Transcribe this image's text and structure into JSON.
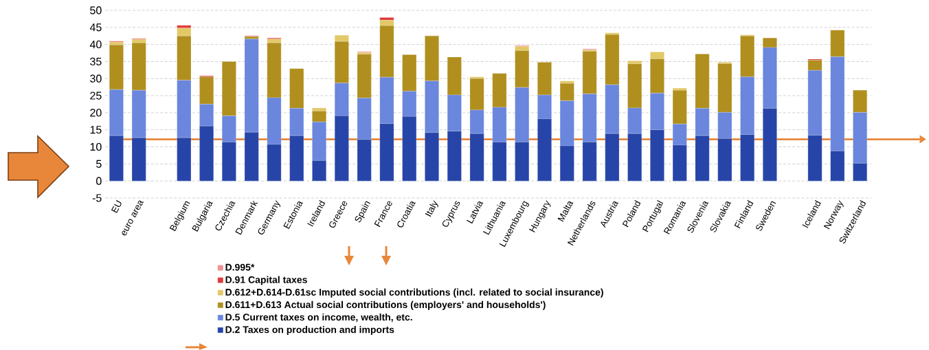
{
  "chart_data": {
    "type": "bar",
    "stacked": true,
    "categories": [
      "EU",
      "euro area",
      null,
      "Belgium",
      "Bulgaria",
      "Czechia",
      "Denmark",
      "Germany",
      "Estonia",
      "Ireland",
      "Greece",
      "Spain",
      "France",
      "Croatia",
      "Italy",
      "Cyprus",
      "Latvia",
      "Lithuania",
      "Luxembourg",
      "Hungary",
      "Malta",
      "Netherlands",
      "Austria",
      "Poland",
      "Portugal",
      "Romania",
      "Slovenia",
      "Slovakia",
      "Finland",
      "Sweden",
      null,
      "Iceland",
      "Norway",
      "Switzerland"
    ],
    "series": [
      {
        "name": "D.2 Taxes on production and imports",
        "color": "#2745a8",
        "values": [
          13.3,
          12.7,
          null,
          12.7,
          16.1,
          11.4,
          14.3,
          10.7,
          13.3,
          6.0,
          19.1,
          12.1,
          16.8,
          18.9,
          14.2,
          14.6,
          13.9,
          11.4,
          11.4,
          18.2,
          10.3,
          11.4,
          13.9,
          13.9,
          15.0,
          10.5,
          13.3,
          12.4,
          13.6,
          21.3,
          null,
          13.4,
          8.8,
          5.2
        ]
      },
      {
        "name": "D.5 Current taxes on income, wealth, etc.",
        "color": "#6a86dd",
        "values": [
          13.5,
          13.9,
          null,
          16.8,
          6.4,
          7.7,
          27.3,
          13.7,
          8.0,
          11.3,
          9.6,
          12.2,
          13.6,
          7.4,
          15.1,
          10.6,
          6.9,
          10.2,
          16.0,
          7.0,
          13.2,
          14.1,
          14.3,
          7.5,
          10.7,
          6.2,
          8.0,
          7.7,
          16.9,
          17.8,
          null,
          19.0,
          27.6,
          14.9
        ]
      },
      {
        "name": "D.611+D.613 Actual social contributions (employers' and households')",
        "color": "#b08f1f",
        "values": [
          13.1,
          13.9,
          null,
          13.0,
          8.0,
          15.9,
          0.7,
          16.1,
          11.6,
          3.2,
          12.2,
          12.8,
          15.1,
          10.7,
          13.2,
          11.1,
          9.2,
          9.9,
          10.8,
          9.6,
          5.1,
          12.5,
          14.7,
          12.9,
          10.1,
          9.9,
          15.9,
          14.3,
          12.0,
          2.8,
          null,
          3.0,
          7.8,
          6.5
        ]
      },
      {
        "name": "D.612+D.614-D.61sc Imputed social contributions (incl. related to social insurance)",
        "color": "#e3c866",
        "values": [
          0.8,
          1.0,
          null,
          2.3,
          null,
          null,
          null,
          1.1,
          null,
          0.9,
          1.8,
          0.5,
          1.6,
          null,
          0.1,
          null,
          0.5,
          null,
          1.2,
          null,
          0.7,
          0.4,
          0.5,
          0.9,
          2.0,
          0.6,
          null,
          0.4,
          0.3,
          null,
          null,
          null,
          null,
          null
        ]
      },
      {
        "name": "D.91 Capital taxes",
        "color": "#e03a3a",
        "values": [
          0.2,
          0.2,
          null,
          0.8,
          0.3,
          null,
          null,
          0.3,
          null,
          null,
          null,
          null,
          0.8,
          null,
          null,
          null,
          null,
          null,
          null,
          null,
          null,
          null,
          null,
          null,
          null,
          null,
          null,
          null,
          null,
          null,
          null,
          0.3,
          null,
          null
        ]
      },
      {
        "name": "D.995*",
        "color": "#f09090",
        "values": [
          0.1,
          null,
          null,
          null,
          null,
          null,
          0.3,
          null,
          null,
          null,
          null,
          0.3,
          null,
          null,
          null,
          null,
          null,
          null,
          0.3,
          null,
          null,
          0.3,
          null,
          null,
          null,
          null,
          null,
          null,
          null,
          null,
          null,
          null,
          null,
          null
        ]
      }
    ],
    "ylim": [
      -5,
      50
    ],
    "yticks": [
      -5,
      0,
      5,
      10,
      15,
      20,
      25,
      30,
      35,
      40,
      45,
      50
    ],
    "grid": "y",
    "legend": "bottom",
    "ref_lines": [
      {
        "axis": "y",
        "value": 12.2,
        "color": "#e8873a"
      }
    ]
  }
}
